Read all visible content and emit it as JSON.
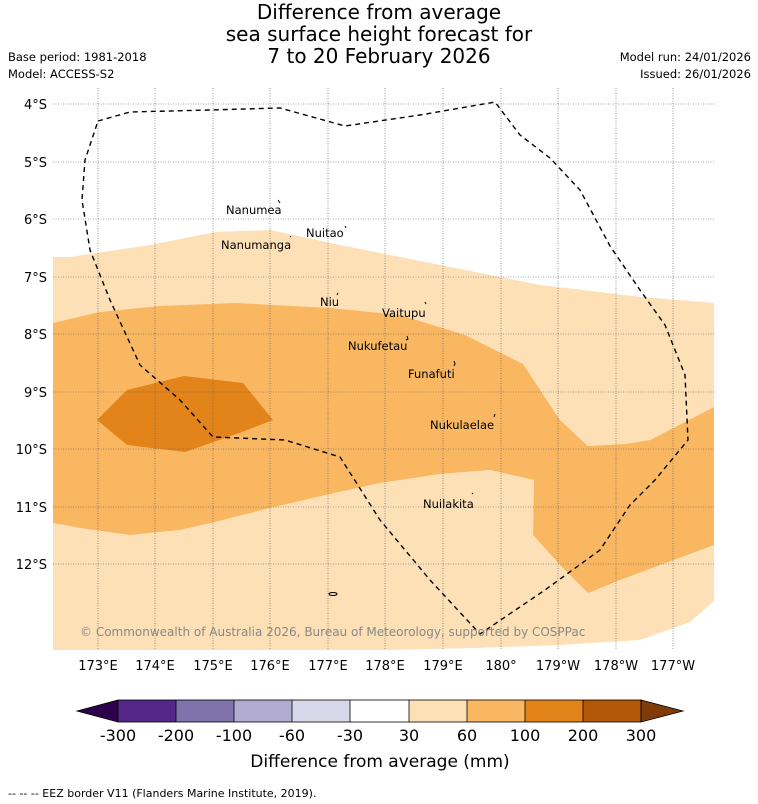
{
  "title": {
    "line1": "Difference from average",
    "line2": "sea surface height forecast for",
    "line3": "7 to 20 February 2026"
  },
  "meta": {
    "base_period": "Base period: 1981-2018",
    "model": "Model: ACCESS-S2",
    "model_run": "Model run: 24/01/2026",
    "issued": "Issued: 26/01/2026"
  },
  "map": {
    "lat_labels": [
      "4°S",
      "5°S",
      "6°S",
      "7°S",
      "8°S",
      "9°S",
      "10°S",
      "11°S",
      "12°S"
    ],
    "lon_labels": [
      "173°E",
      "174°E",
      "175°E",
      "176°E",
      "177°E",
      "178°E",
      "179°E",
      "180°",
      "179°W",
      "178°W",
      "177°W"
    ],
    "places": [
      "Nanumea",
      "Nuitao",
      "Nanumanga",
      "Niu",
      "Vaitupu",
      "Nukufetau",
      "Funafuti",
      "Nukulaelae",
      "Nuilakita"
    ],
    "copyright": "© Commonwealth of Australia 2026, Bureau of Meteorology, supported by COSPPac",
    "colors": {
      "band_30_60": "#fde0b6",
      "band_60_100": "#f9b762",
      "band_100_200": "#e2841a",
      "band_200_300": "#b35806",
      "band_over_300": "#7f3b08",
      "band_neg_30_30": "#ffffff",
      "band_neg_60_30": "#d8d8ea",
      "band_neg_100_60": "#b2abd2",
      "band_neg_200_100": "#8073ac",
      "band_neg_300_200": "#542788",
      "band_under_neg300": "#2d004b"
    }
  },
  "colorbar": {
    "ticks": [
      "-300",
      "-200",
      "-100",
      "-60",
      "-30",
      "30",
      "60",
      "100",
      "200",
      "300"
    ],
    "label": "Difference from average (mm)"
  },
  "footer": {
    "eez_note": "-- -- -- EEZ border V11 (Flanders Marine Institute, 2019)."
  }
}
